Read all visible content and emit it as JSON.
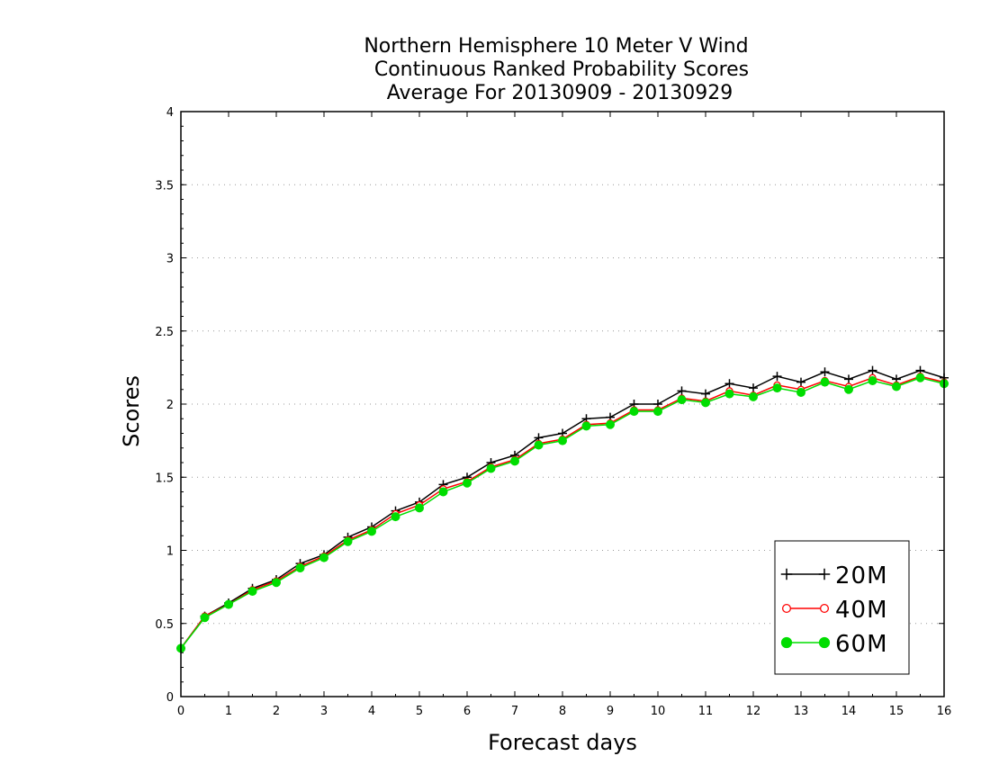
{
  "chart_data": {
    "type": "line",
    "title_lines": [
      "Northern Hemisphere 10 Meter V Wind",
      "Continuous Ranked Probability Scores",
      "Average For 20130909 - 20130929"
    ],
    "xlabel": "Forecast days",
    "ylabel": "Scores",
    "xlim": [
      0,
      16
    ],
    "ylim": [
      0,
      4
    ],
    "xticks": [
      0,
      1,
      2,
      3,
      4,
      5,
      6,
      7,
      8,
      9,
      10,
      11,
      12,
      13,
      14,
      15,
      16
    ],
    "yticks": [
      0,
      0.5,
      1,
      1.5,
      2,
      2.5,
      3,
      3.5,
      4
    ],
    "ytick_labels": [
      "0",
      "0.5",
      "1",
      "1.5",
      "2",
      "2.5",
      "3",
      "3.5",
      "4"
    ],
    "grid": "horizontal-dotted",
    "legend_position": "bottom-right",
    "x": [
      0,
      0.5,
      1,
      1.5,
      2,
      2.5,
      3,
      3.5,
      4,
      4.5,
      5,
      5.5,
      6,
      6.5,
      7,
      7.5,
      8,
      8.5,
      9,
      9.5,
      10,
      10.5,
      11,
      11.5,
      12,
      12.5,
      13,
      13.5,
      14,
      14.5,
      15,
      15.5,
      16
    ],
    "series": [
      {
        "name": "20M",
        "color": "#000000",
        "marker": "plus",
        "values": [
          0.33,
          0.55,
          0.64,
          0.74,
          0.8,
          0.91,
          0.97,
          1.09,
          1.16,
          1.27,
          1.33,
          1.45,
          1.5,
          1.6,
          1.65,
          1.77,
          1.8,
          1.9,
          1.91,
          2.0,
          2.0,
          2.09,
          2.07,
          2.14,
          2.11,
          2.19,
          2.15,
          2.22,
          2.17,
          2.23,
          2.17,
          2.23,
          2.18
        ]
      },
      {
        "name": "40M",
        "color": "#ff0000",
        "marker": "open-circle",
        "values": [
          0.33,
          0.55,
          0.63,
          0.73,
          0.79,
          0.89,
          0.96,
          1.07,
          1.14,
          1.25,
          1.31,
          1.42,
          1.47,
          1.57,
          1.62,
          1.73,
          1.76,
          1.86,
          1.87,
          1.96,
          1.96,
          2.04,
          2.02,
          2.09,
          2.06,
          2.13,
          2.1,
          2.16,
          2.12,
          2.18,
          2.13,
          2.19,
          2.15
        ]
      },
      {
        "name": "60M",
        "color": "#00dd00",
        "marker": "filled-circle",
        "values": [
          0.33,
          0.54,
          0.63,
          0.72,
          0.78,
          0.88,
          0.95,
          1.06,
          1.13,
          1.23,
          1.29,
          1.4,
          1.46,
          1.56,
          1.61,
          1.72,
          1.75,
          1.85,
          1.86,
          1.95,
          1.95,
          2.03,
          2.01,
          2.07,
          2.05,
          2.11,
          2.08,
          2.15,
          2.1,
          2.16,
          2.12,
          2.18,
          2.14
        ]
      }
    ]
  }
}
